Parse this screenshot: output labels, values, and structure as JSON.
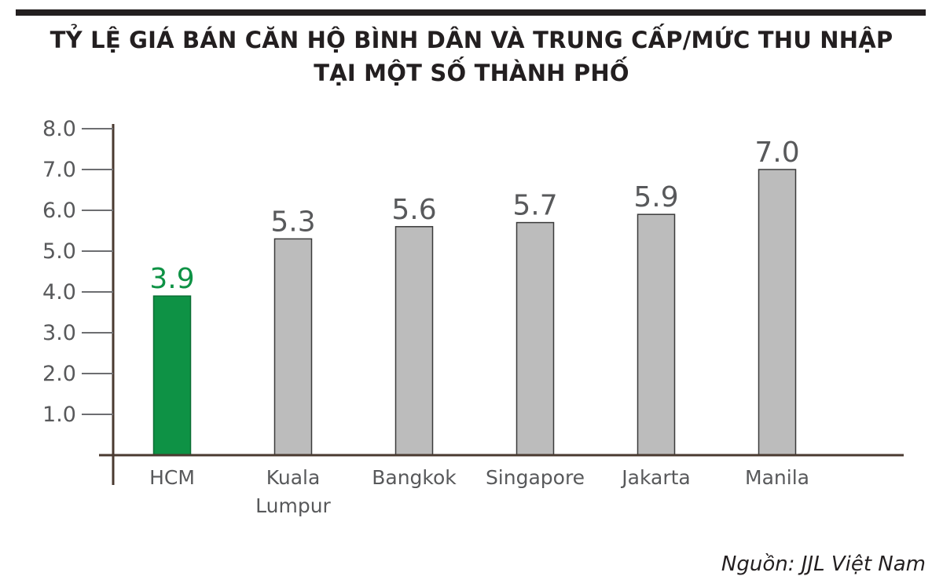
{
  "colors": {
    "highlight": "#0e9245",
    "bar": "#bcbcbc",
    "bar_stroke": "#3a3a3a",
    "axis": "#4a3a30",
    "text": "#58595b",
    "title": "#231f20"
  },
  "chart_data": {
    "type": "bar",
    "title_lines": [
      "TỶ LỆ GIÁ BÁN CĂN HỘ BÌNH DÂN VÀ TRUNG CẤP/MỨC THU NHẬP",
      "TẠI MỘT SỐ THÀNH PHỐ"
    ],
    "categories": [
      "HCM",
      "Kuala\nLumpur",
      "Bangkok",
      "Singapore",
      "Jakarta",
      "Manila"
    ],
    "values": [
      3.9,
      5.3,
      5.6,
      5.7,
      5.9,
      7.0
    ],
    "value_labels": [
      "3.9",
      "5.3",
      "5.6",
      "5.7",
      "5.9",
      "7.0"
    ],
    "highlight_index": 0,
    "yticks": [
      "1.0",
      "2.0",
      "3.0",
      "4.0",
      "5.0",
      "6.0",
      "7.0",
      "8.0"
    ],
    "ytick_values": [
      1,
      2,
      3,
      4,
      5,
      6,
      7,
      8
    ],
    "ylim": [
      0,
      8
    ],
    "xlabel": "",
    "ylabel": "",
    "grid": false,
    "legend": "none"
  },
  "source": "Nguồn: JJL Việt Nam"
}
